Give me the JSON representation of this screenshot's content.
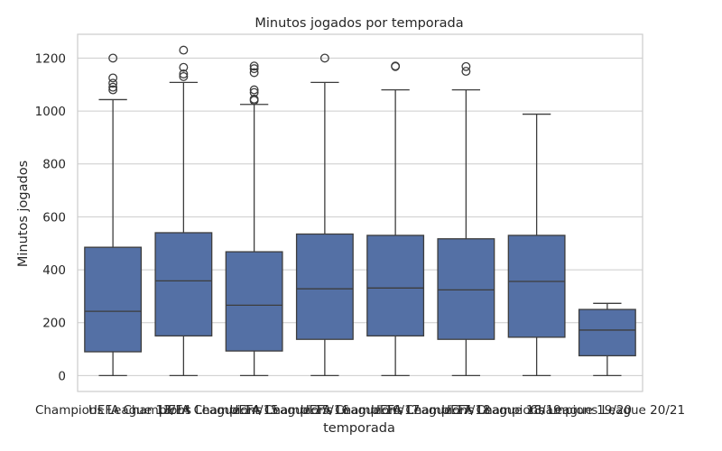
{
  "chart_data": {
    "type": "box",
    "title": "Minutos jogados por temporada",
    "xlabel": "temporada",
    "ylabel": "Minutos jogados",
    "ylim": [
      -60,
      1290
    ],
    "yticks": [
      0,
      200,
      400,
      600,
      800,
      1000,
      1200
    ],
    "grid": true,
    "box_color": "#5470a5",
    "line_color": "#3d3d3d",
    "categories": [
      "Champions League 13/14",
      "UEFA Champions League 14/15",
      "UEFA Champions League 15/16",
      "UEFA Champions League 16/17",
      "UEFA Champions League 17/18",
      "UEFA Champions League 18/19",
      "UEFA Champions League 19/20",
      "Champions League 20/21"
    ],
    "boxes": [
      {
        "whisker_low": 0,
        "q1": 90,
        "median": 243,
        "q3": 485,
        "whisker_high": 1043,
        "outliers": [
          1080,
          1090,
          1105,
          1125,
          1200
        ]
      },
      {
        "whisker_low": 0,
        "q1": 150,
        "median": 358,
        "q3": 540,
        "whisker_high": 1108,
        "outliers": [
          1130,
          1140,
          1165,
          1230
        ]
      },
      {
        "whisker_low": 0,
        "q1": 93,
        "median": 266,
        "q3": 468,
        "whisker_high": 1025,
        "outliers": [
          1040,
          1045,
          1070,
          1080,
          1145,
          1160,
          1170
        ]
      },
      {
        "whisker_low": 0,
        "q1": 137,
        "median": 328,
        "q3": 535,
        "whisker_high": 1108,
        "outliers": [
          1200
        ]
      },
      {
        "whisker_low": 0,
        "q1": 150,
        "median": 331,
        "q3": 530,
        "whisker_high": 1080,
        "outliers": [
          1168,
          1170
        ]
      },
      {
        "whisker_low": 0,
        "q1": 137,
        "median": 324,
        "q3": 517,
        "whisker_high": 1080,
        "outliers": [
          1150,
          1168
        ]
      },
      {
        "whisker_low": 0,
        "q1": 145,
        "median": 356,
        "q3": 530,
        "whisker_high": 988,
        "outliers": []
      },
      {
        "whisker_low": 0,
        "q1": 75,
        "median": 172,
        "q3": 250,
        "whisker_high": 273,
        "outliers": []
      }
    ]
  }
}
